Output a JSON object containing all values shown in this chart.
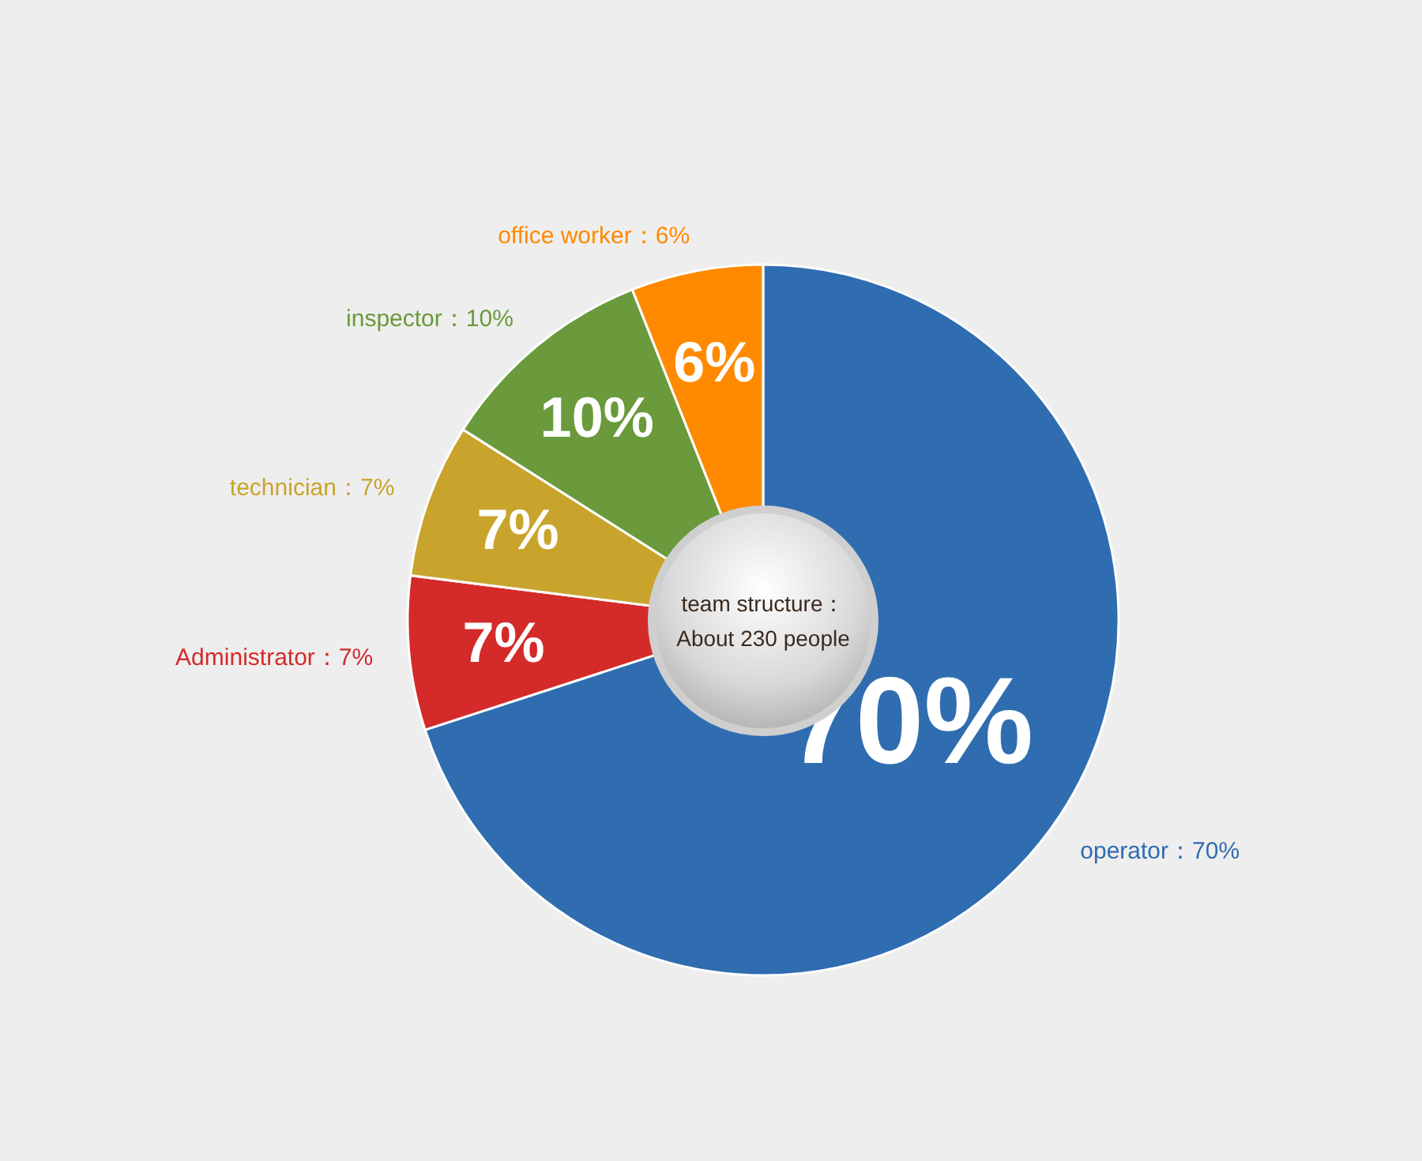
{
  "chart_data": {
    "type": "pie",
    "categories": [
      "operator：70%",
      "Administrator：7%",
      "technician：7%",
      "inspector：10%",
      "office worker：6%"
    ],
    "values": [
      70,
      7,
      7,
      10,
      6
    ],
    "value_labels": [
      "70%",
      "7%",
      "7%",
      "10%",
      "6%"
    ],
    "colors": [
      "#2f6db0",
      "#d42a2a",
      "#c9a42c",
      "#6a9a3c",
      "#ff8a00"
    ],
    "annotations": [
      "team structure：",
      "About 230 people"
    ]
  }
}
